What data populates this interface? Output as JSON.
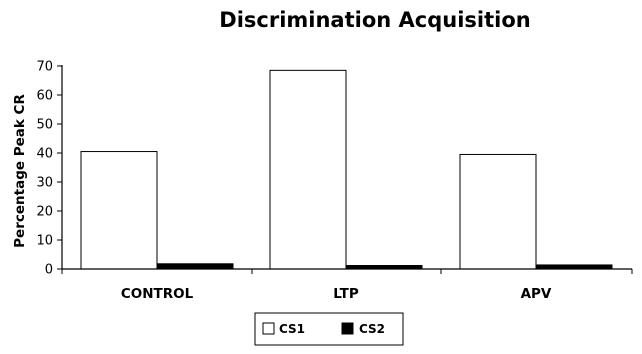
{
  "chart_data": {
    "type": "bar",
    "title": "Discrimination Acquisition",
    "xlabel": "",
    "ylabel": "Percentage Peak CR",
    "ylim": [
      0,
      70
    ],
    "yticks": [
      0,
      10,
      20,
      30,
      40,
      50,
      60,
      70
    ],
    "categories": [
      "CONTROL",
      "LTP",
      "APV"
    ],
    "series": [
      {
        "name": "CS1",
        "values": [
          40.5,
          68.5,
          39.5
        ],
        "fill": "#ffffff",
        "stroke": "#000000"
      },
      {
        "name": "CS2",
        "values": [
          1.8,
          1.2,
          1.4
        ],
        "fill": "#000000",
        "stroke": "#000000"
      }
    ],
    "grid": false,
    "legend_position": "bottom-center"
  }
}
